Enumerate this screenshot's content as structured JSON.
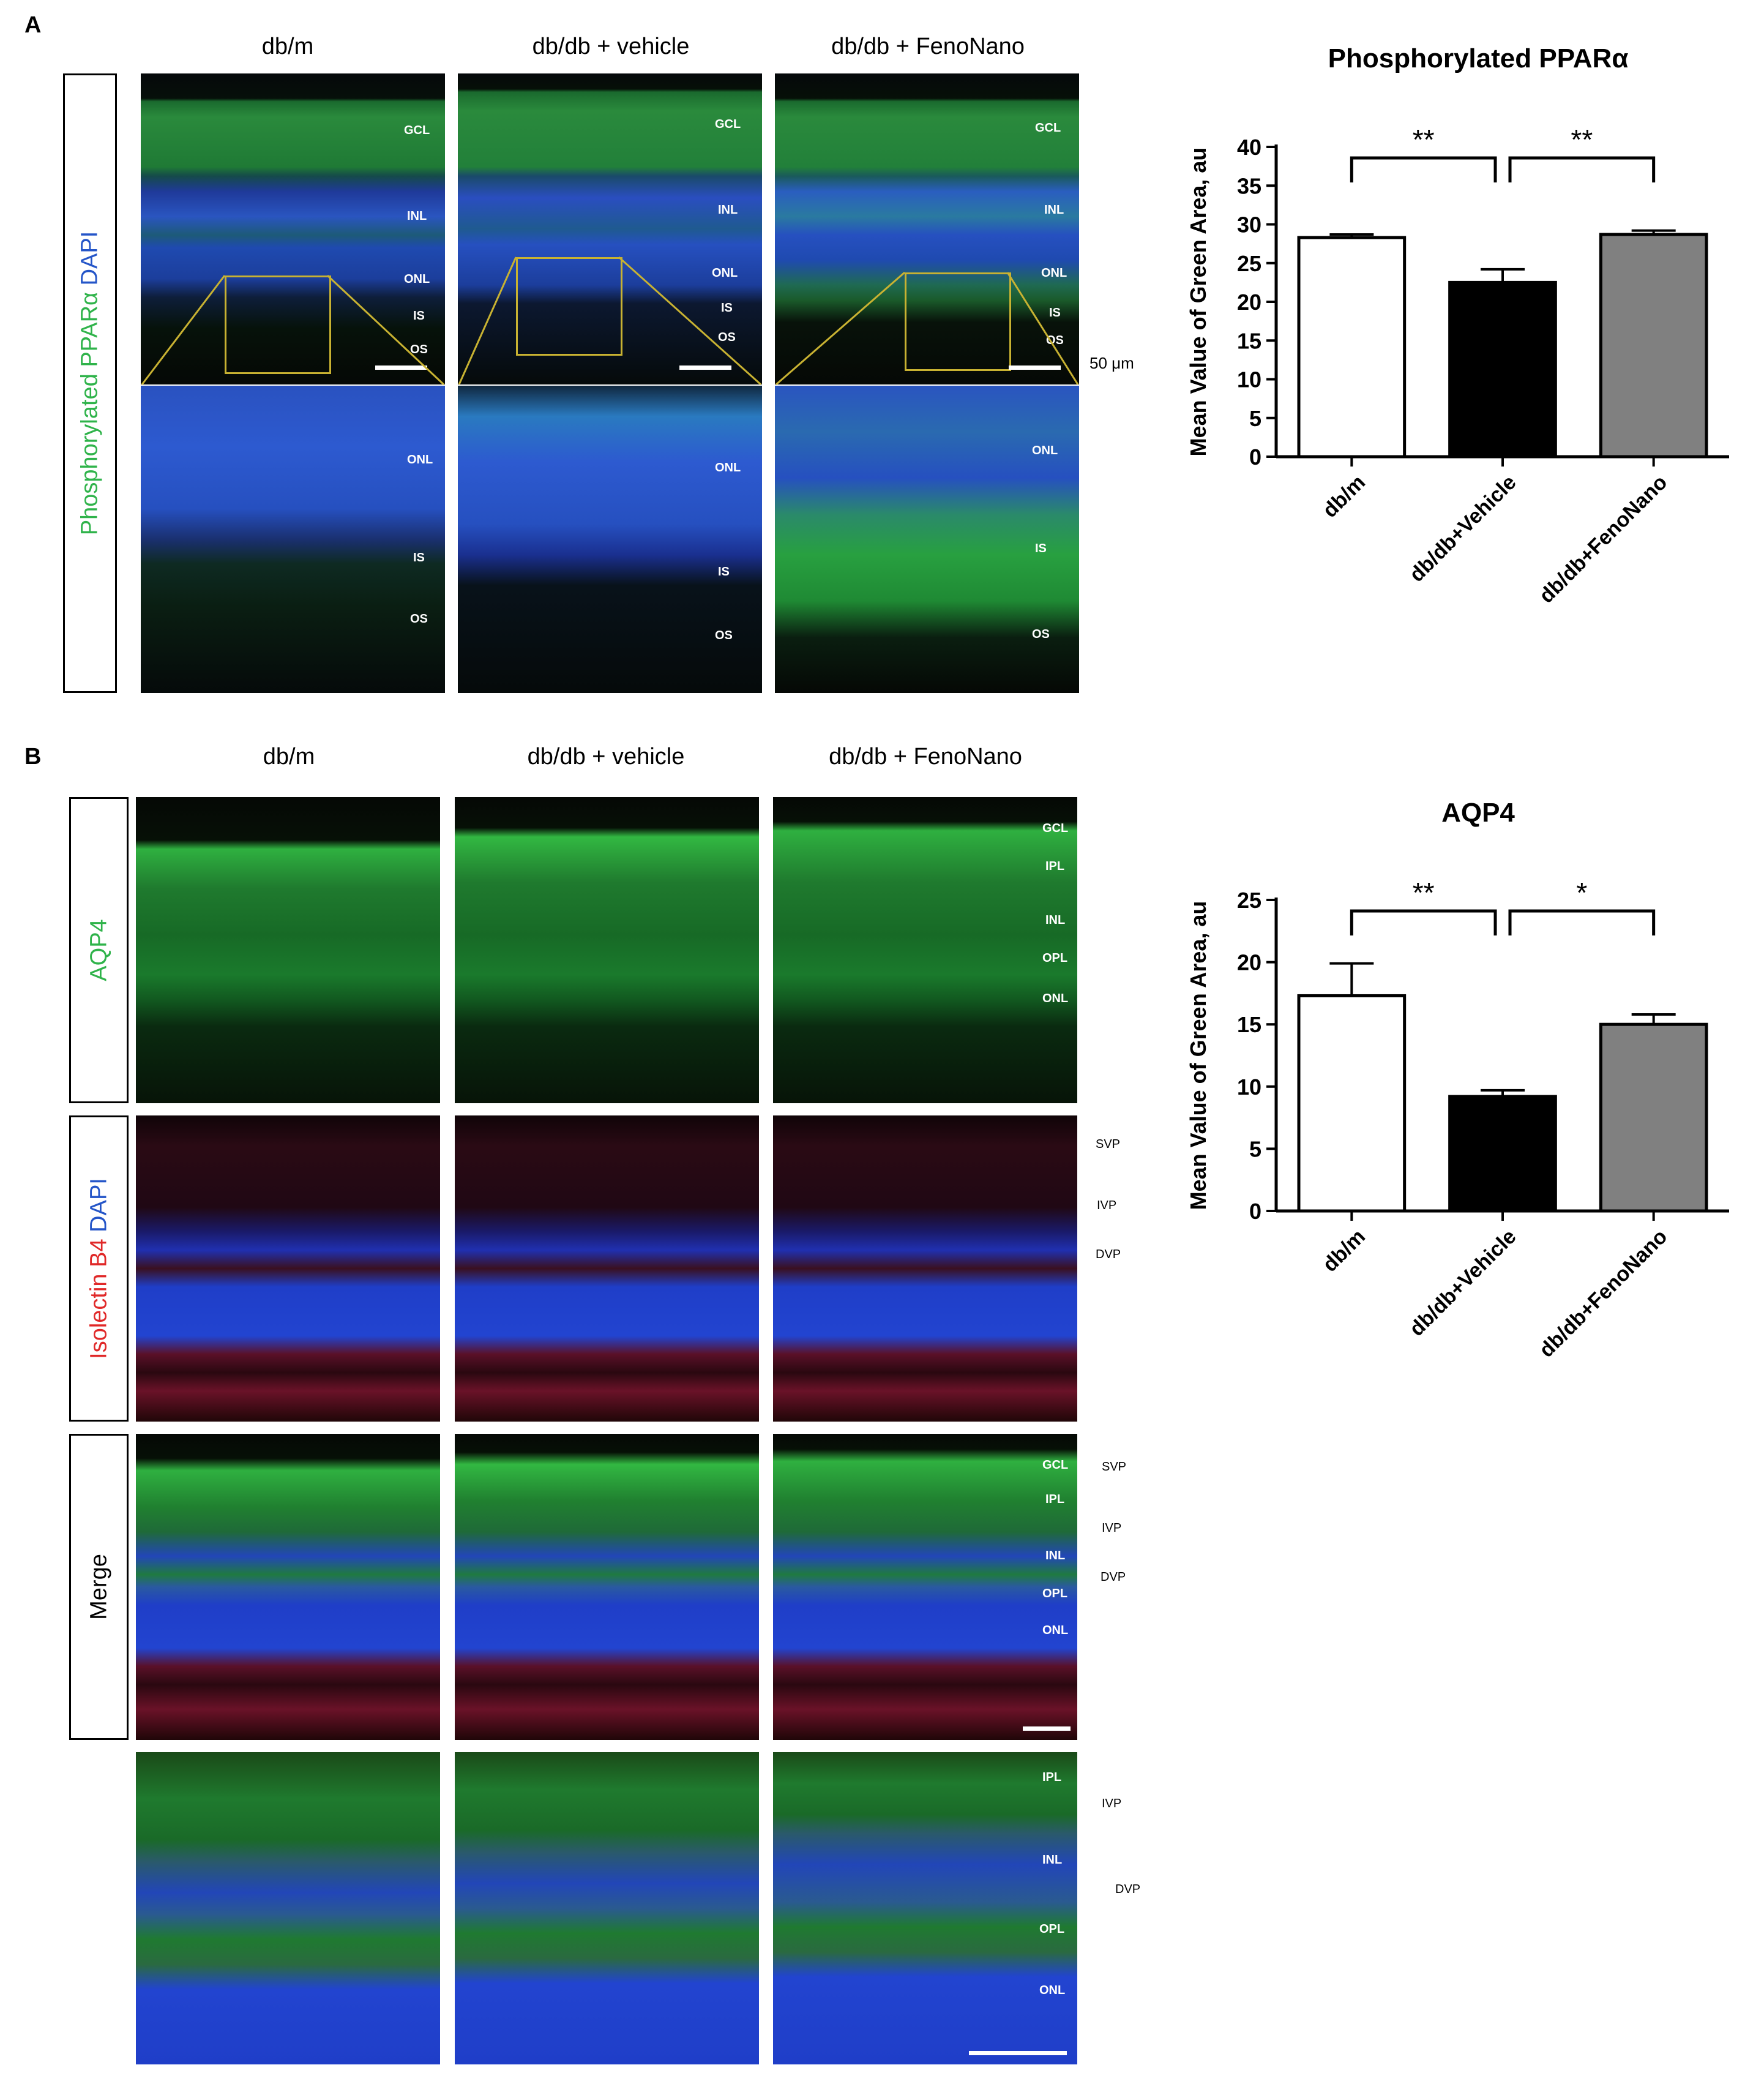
{
  "panel_a": {
    "letter": "A",
    "columns": [
      "db/m",
      "db/db + vehicle",
      "db/db + FenoNano"
    ],
    "stain_label": {
      "part1": "Phosphorylated",
      "part2": "PPARα",
      "part3": "DAPI"
    },
    "top_layers": [
      "GCL",
      "INL",
      "ONL",
      "IS",
      "OS"
    ],
    "zoom_layers": [
      "ONL",
      "IS",
      "OS"
    ],
    "scale_label": "50 μm",
    "colors": {
      "green": "#2fb34a",
      "blue": "#2455c8",
      "inset_box": "#c8b232"
    }
  },
  "panel_b": {
    "letter": "B",
    "columns": [
      "db/m",
      "db/db + vehicle",
      "db/db + FenoNano"
    ],
    "row1_label": "AQP4",
    "row2_label": {
      "part1": "Isolectin",
      "part2": "B4",
      "part3": "DAPI"
    },
    "row3_label": "Merge",
    "row1_layers": [
      "GCL",
      "IPL",
      "INL",
      "OPL",
      "ONL"
    ],
    "row2_side_labels": [
      "SVP",
      "IVP",
      "DVP"
    ],
    "row3_layers": [
      "GCL",
      "IPL",
      "INL",
      "OPL",
      "ONL"
    ],
    "row3_side_labels": [
      "SVP",
      "IVP",
      "DVP"
    ],
    "row4_layers": [
      "IPL",
      "INL",
      "OPL",
      "ONL"
    ],
    "row4_side_labels": [
      "IVP",
      "DVP"
    ],
    "colors": {
      "green": "#2fb34a",
      "blue": "#2455c8",
      "red": "#e02828"
    }
  },
  "chart_data": [
    {
      "type": "bar",
      "title": "Phosphorylated PPARα",
      "ylabel": "Mean Value of Green Area, au",
      "xlabel": "",
      "categories": [
        "db/m",
        "db/db+Vehicle",
        "db/db+FenoNano"
      ],
      "values": [
        28.3,
        22.5,
        28.7
      ],
      "errors": [
        0.4,
        1.7,
        0.5
      ],
      "bar_colors": [
        "#ffffff",
        "#000000",
        "#808080"
      ],
      "ylim": [
        0,
        40
      ],
      "yticks": [
        "0",
        "5",
        "10",
        "15",
        "20",
        "25",
        "30",
        "35",
        "40"
      ],
      "significance": [
        {
          "from": "db/m",
          "to": "db/db+Vehicle",
          "label": "**"
        },
        {
          "from": "db/db+Vehicle",
          "to": "db/db+FenoNano",
          "label": "**"
        }
      ],
      "grid": false,
      "legend": "none"
    },
    {
      "type": "bar",
      "title": "AQP4",
      "ylabel": "Mean Value of Green Area, au",
      "xlabel": "",
      "categories": [
        "db/m",
        "db/db+Vehicle",
        "db/db+FenoNano"
      ],
      "values": [
        17.3,
        9.2,
        15.0
      ],
      "errors": [
        2.6,
        0.5,
        0.8
      ],
      "bar_colors": [
        "#ffffff",
        "#000000",
        "#808080"
      ],
      "ylim": [
        0,
        25
      ],
      "yticks": [
        "0",
        "5",
        "10",
        "15",
        "20",
        "25"
      ],
      "significance": [
        {
          "from": "db/m",
          "to": "db/db+Vehicle",
          "label": "**"
        },
        {
          "from": "db/db+Vehicle",
          "to": "db/db+FenoNano",
          "label": "*"
        }
      ],
      "grid": false,
      "legend": "none"
    }
  ]
}
